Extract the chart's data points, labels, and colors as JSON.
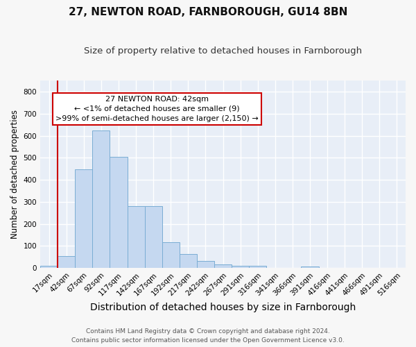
{
  "title": "27, NEWTON ROAD, FARNBOROUGH, GU14 8BN",
  "subtitle": "Size of property relative to detached houses in Farnborough",
  "xlabel": "Distribution of detached houses by size in Farnborough",
  "ylabel": "Number of detached properties",
  "bar_heights": [
    10,
    52,
    449,
    625,
    503,
    280,
    280,
    115,
    62,
    32,
    17,
    8,
    8,
    0,
    0,
    7,
    0,
    0,
    0,
    0,
    0
  ],
  "bar_labels": [
    "17sqm",
    "42sqm",
    "67sqm",
    "92sqm",
    "117sqm",
    "142sqm",
    "167sqm",
    "192sqm",
    "217sqm",
    "242sqm",
    "267sqm",
    "291sqm",
    "316sqm",
    "341sqm",
    "366sqm",
    "391sqm",
    "416sqm",
    "441sqm",
    "466sqm",
    "491sqm",
    "516sqm"
  ],
  "bar_color": "#c5d8f0",
  "bar_edge_color": "#7aadd4",
  "vline_color": "#cc0000",
  "annotation_text": "27 NEWTON ROAD: 42sqm\n← <1% of detached houses are smaller (9)\n>99% of semi-detached houses are larger (2,150) →",
  "annotation_box_facecolor": "#ffffff",
  "annotation_box_edgecolor": "#cc0000",
  "ylim": [
    0,
    850
  ],
  "yticks": [
    0,
    100,
    200,
    300,
    400,
    500,
    600,
    700,
    800
  ],
  "footer_line1": "Contains HM Land Registry data © Crown copyright and database right 2024.",
  "footer_line2": "Contains public sector information licensed under the Open Government Licence v3.0.",
  "fig_facecolor": "#f7f7f7",
  "plot_facecolor": "#e8eef7",
  "grid_color": "#ffffff",
  "title_fontsize": 11,
  "subtitle_fontsize": 9.5,
  "xlabel_fontsize": 10,
  "ylabel_fontsize": 8.5,
  "tick_fontsize": 7.5,
  "annotation_fontsize": 8,
  "footer_fontsize": 6.5
}
